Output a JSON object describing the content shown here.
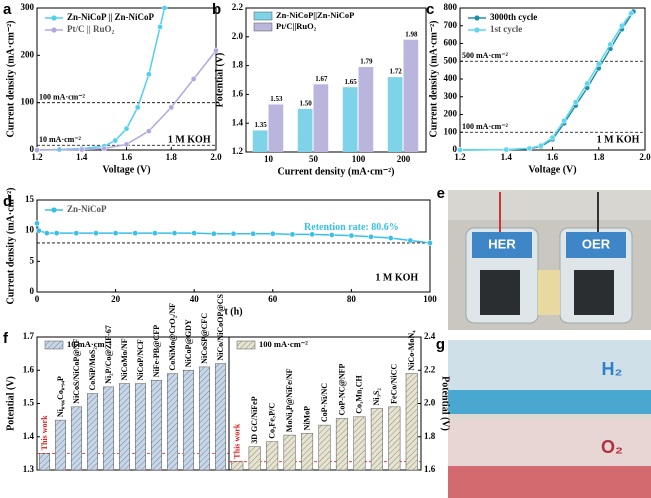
{
  "chart_data": [
    {
      "type": "line",
      "panel": "a",
      "xlabel": "Voltage (V)",
      "ylabel": "Current density (mA·cm⁻²)",
      "xlim": [
        1.2,
        2.0
      ],
      "xticks": [
        1.2,
        1.4,
        1.6,
        1.8,
        {
          "value": 2.0,
          "label": "2.0"
        }
      ],
      "ylim": [
        0,
        300
      ],
      "yticks": [
        0,
        100,
        200,
        300
      ],
      "legend": "upper left",
      "hlines": [
        {
          "value": 100,
          "label": "100 mA·cm⁻²"
        },
        {
          "value": 10,
          "label": "10 mA·cm⁻²"
        }
      ],
      "annotations": [
        "1 M KOH"
      ],
      "series": [
        {
          "name": "Zn-NiCoP || Zn-NiCoP",
          "color": "#4fd0f0",
          "x": [
            1.2,
            1.3,
            1.4,
            1.5,
            1.55,
            1.6,
            1.65,
            1.7,
            1.75,
            1.77
          ],
          "values": [
            0,
            1,
            3,
            8,
            20,
            45,
            90,
            160,
            260,
            300
          ]
        },
        {
          "name": "Pt/C || RuO₂",
          "color": "#b0a8e0",
          "x": [
            1.2,
            1.4,
            1.5,
            1.6,
            1.7,
            1.8,
            1.9,
            2.0
          ],
          "values": [
            0,
            1,
            3,
            12,
            40,
            90,
            150,
            210
          ]
        }
      ]
    },
    {
      "type": "bar",
      "panel": "b",
      "xlabel": "Current density (mA·cm⁻²)",
      "ylabel": "Potential (V)",
      "categories": [
        "10",
        "50",
        "100",
        "200"
      ],
      "ylim": [
        1.2,
        2.2
      ],
      "yticks": [
        1.2,
        1.4,
        1.6,
        1.8,
        {
          "value": 2.0,
          "label": "2.0"
        },
        2.2
      ],
      "legend": "upper left",
      "series": [
        {
          "name": "Zn-NiCoP||Zn-NiCoP",
          "color": "#7fd3e8",
          "values": [
            1.35,
            1.5,
            1.65,
            1.72
          ],
          "value_labels": [
            "1.35",
            "1.50",
            "1.65",
            "1.72"
          ]
        },
        {
          "name": "Pt/C||RuO₂",
          "color": "#bab5dc",
          "values": [
            1.53,
            1.67,
            1.79,
            1.98
          ],
          "value_labels": [
            "1.53",
            "1.67",
            "1.79",
            "1.98"
          ]
        }
      ]
    },
    {
      "type": "line",
      "panel": "c",
      "xlabel": "Voltage (V)",
      "ylabel": "Current density (mA·cm⁻²)",
      "xlim": [
        1.2,
        2.0
      ],
      "xticks": [
        1.2,
        1.4,
        1.6,
        1.8,
        {
          "value": 2.0,
          "label": "2.0"
        }
      ],
      "ylim": [
        0,
        800
      ],
      "yticks": [
        0,
        100,
        200,
        300,
        400,
        500,
        600,
        700,
        800
      ],
      "legend": "upper left",
      "hlines": [
        {
          "value": 500,
          "label": "500 mA·cm⁻²"
        },
        {
          "value": 100,
          "label": "100 mA·cm⁻²"
        }
      ],
      "annotations": [
        "1 M KOH"
      ],
      "series": [
        {
          "name": "3000th cycle",
          "color": "#1f8fa6",
          "x": [
            1.2,
            1.4,
            1.5,
            1.55,
            1.6,
            1.65,
            1.7,
            1.75,
            1.8,
            1.85,
            1.9,
            1.95
          ],
          "values": [
            0,
            2,
            8,
            20,
            60,
            150,
            250,
            350,
            460,
            570,
            680,
            780
          ]
        },
        {
          "name": "1st cycle",
          "color": "#5fd6f0",
          "x": [
            1.2,
            1.4,
            1.5,
            1.55,
            1.6,
            1.65,
            1.7,
            1.75,
            1.8,
            1.85,
            1.9,
            1.94
          ],
          "values": [
            0,
            2,
            9,
            25,
            70,
            165,
            270,
            375,
            485,
            595,
            700,
            770
          ]
        }
      ]
    },
    {
      "type": "line",
      "panel": "d",
      "xlabel": "t (h)",
      "ylabel": "Current density (mA·cm⁻²)",
      "xlim": [
        0,
        100
      ],
      "xticks": [
        0,
        20,
        40,
        60,
        80,
        100
      ],
      "ylim": [
        0,
        15
      ],
      "yticks": [
        0,
        5,
        10,
        15
      ],
      "legend": "upper left",
      "hlines": [
        {
          "value": 8
        }
      ],
      "annotations": [
        "Retention rate:  80.6%",
        "1 M KOH"
      ],
      "series": [
        {
          "name": "Zn-NiCoP",
          "color": "#39c0e8",
          "x": [
            0,
            0.5,
            2.5,
            5,
            10,
            15,
            20,
            25,
            30,
            35,
            40,
            45,
            50,
            55,
            60,
            65,
            70,
            75,
            80,
            85,
            90,
            95,
            100
          ],
          "values": [
            11.2,
            10.0,
            9.6,
            9.6,
            9.6,
            9.6,
            9.6,
            9.6,
            9.6,
            9.6,
            9.6,
            9.5,
            9.5,
            9.5,
            9.5,
            9.4,
            9.4,
            9.3,
            9.2,
            9.0,
            8.8,
            8.4,
            8.0
          ]
        }
      ]
    },
    {
      "type": "bar",
      "panel": "f",
      "ylabel": "Potential (V)",
      "ylim": [
        1.3,
        1.7
      ],
      "yticks": [
        1.3,
        1.4,
        1.5,
        1.6,
        1.7
      ],
      "legend": "upper left",
      "highlight_index": 0,
      "highlight_color": "#e02020",
      "categories": [
        "This work",
        "Ni₀.₀₆Co₀.₉₄P",
        "NiCoS/NiCoP@NF",
        "CoNiP/MoS₂",
        "Ni₂P/Co@ZIF-67",
        "NiCoMo/NF",
        "NiCoP/NCF",
        "NiFe-PB@CFP",
        "CoNiMo@CrO₂/NF",
        "NiCoP@GDY",
        "NiCoSP@CFC",
        "NiCo/NiCoOP@CS"
      ],
      "series": [
        {
          "name": "10 mA·cm⁻²",
          "color": "#b8c8dc",
          "values": [
            1.35,
            1.45,
            1.49,
            1.53,
            1.55,
            1.56,
            1.56,
            1.57,
            1.59,
            1.6,
            1.61,
            1.62
          ]
        }
      ]
    },
    {
      "type": "bar",
      "ylabel": "Potential (V)",
      "ylim": [
        1.6,
        2.4
      ],
      "yticks": [
        1.6,
        1.8,
        {
          "value": 2.0,
          "label": "2.0"
        },
        2.2,
        2.4
      ],
      "legend": "upper left",
      "yaxis": "right",
      "highlight_index": 0,
      "highlight_color": "#e02020",
      "categories": [
        "This work",
        "3D GC/NiFeP",
        "Co₃Fe₇P/C",
        "MoNi₄P@NiFe/NF",
        "NiMoP",
        "CoP-Ni/NC",
        "CoP-NC@NFP",
        "Co₁Mn₁CH",
        "Ni₃S₂",
        "FeCo/NiCC",
        "NiCo-MoN₄"
      ],
      "series": [
        {
          "name": "100 mA·cm⁻²",
          "color": "#d8d4c0",
          "values": [
            1.65,
            1.74,
            1.77,
            1.81,
            1.82,
            1.87,
            1.91,
            1.92,
            1.97,
            1.98,
            2.18
          ]
        }
      ]
    }
  ],
  "images": [
    {
      "panel": "e",
      "labels": [
        "HER",
        "OER"
      ]
    },
    {
      "panel": "g",
      "labels": [
        "H₂",
        "O₂"
      ]
    }
  ]
}
